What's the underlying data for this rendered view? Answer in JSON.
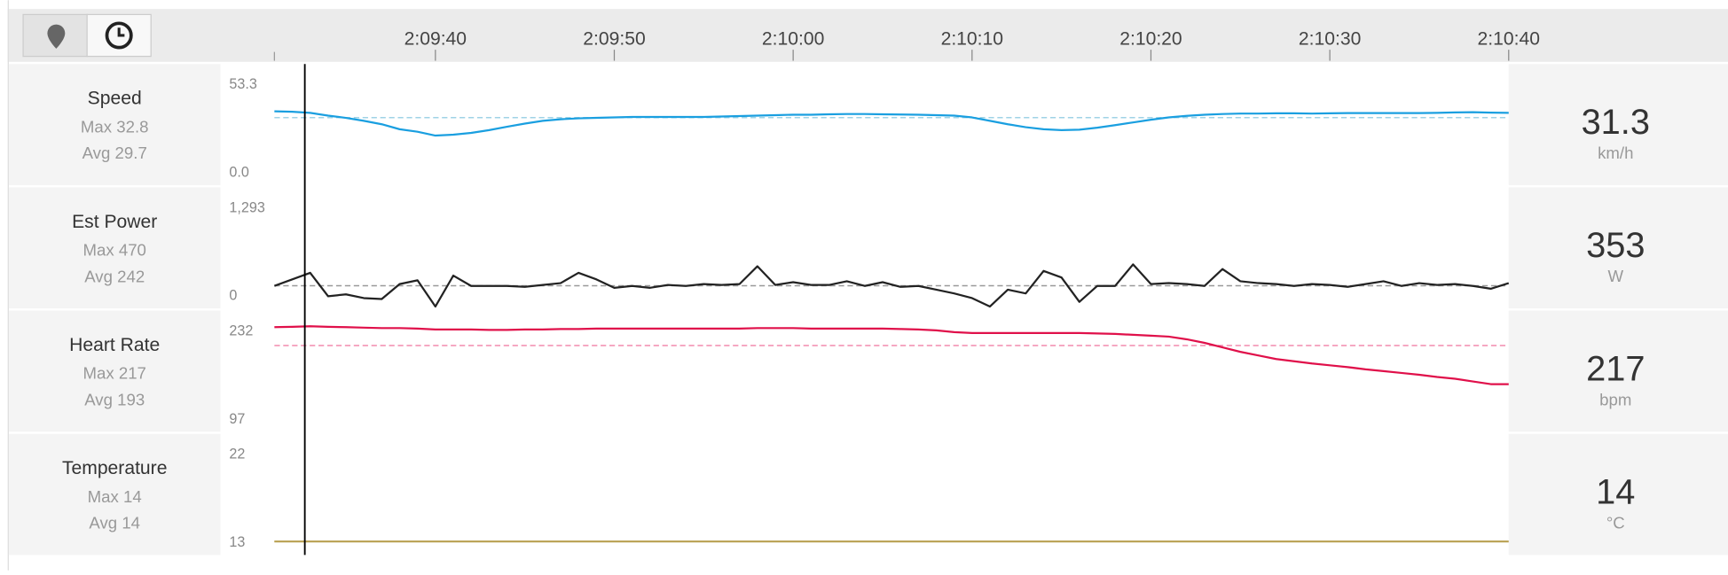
{
  "x_axis": {
    "xlim": [
      7771,
      7840
    ],
    "xticks": [
      {
        "value": 7780,
        "label": "2:09:40"
      },
      {
        "value": 7790,
        "label": "2:09:50"
      },
      {
        "value": 7800,
        "label": "2:10:00"
      },
      {
        "value": 7810,
        "label": "2:10:10"
      },
      {
        "value": 7820,
        "label": "2:10:20"
      },
      {
        "value": 7830,
        "label": "2:10:30"
      },
      {
        "value": 7840,
        "label": "2:10:40"
      }
    ],
    "cursor_x": 7772.7
  },
  "x": [
    7771,
    7772,
    7773,
    7774,
    7775,
    7776,
    7777,
    7778,
    7779,
    7780,
    7781,
    7782,
    7783,
    7784,
    7785,
    7786,
    7787,
    7788,
    7789,
    7790,
    7791,
    7792,
    7793,
    7794,
    7795,
    7796,
    7797,
    7798,
    7799,
    7800,
    7801,
    7802,
    7803,
    7804,
    7805,
    7806,
    7807,
    7808,
    7809,
    7810,
    7811,
    7812,
    7813,
    7814,
    7815,
    7816,
    7817,
    7818,
    7819,
    7820,
    7821,
    7822,
    7823,
    7824,
    7825,
    7826,
    7827,
    7828,
    7829,
    7830,
    7831,
    7832,
    7833,
    7834,
    7835,
    7836,
    7837,
    7838,
    7839,
    7840
  ],
  "stat_labels": {
    "max": "Max",
    "avg": "Avg"
  },
  "chart_data": [
    {
      "type": "line",
      "title": "Speed",
      "max": 32.8,
      "avg": 29.7,
      "current": 31.3,
      "unit": "km/h",
      "ylim": [
        0,
        53.3
      ],
      "yticks": [
        {
          "value": 0,
          "label": "0.0"
        },
        53.3
      ],
      "color": "#1a9fe0",
      "avg_color": "#9fd3e6",
      "values": [
        32.5,
        32.3,
        31.8,
        30.6,
        29.6,
        28.3,
        26.8,
        24.6,
        23.5,
        21.8,
        22.2,
        23.0,
        24.2,
        25.7,
        27.1,
        28.3,
        29.0,
        29.4,
        29.6,
        29.8,
        30.0,
        30.0,
        30.0,
        30.0,
        30.0,
        30.2,
        30.4,
        30.6,
        30.8,
        31.0,
        31.0,
        31.2,
        31.3,
        31.3,
        31.2,
        31.1,
        31.0,
        30.8,
        30.6,
        29.8,
        28.3,
        26.8,
        25.5,
        24.6,
        24.2,
        24.4,
        25.3,
        26.4,
        27.6,
        28.8,
        29.8,
        30.5,
        31.0,
        31.3,
        31.5,
        31.5,
        31.6,
        31.6,
        31.5,
        31.6,
        31.7,
        31.7,
        31.7,
        31.7,
        31.7,
        31.8,
        32.0,
        32.1,
        31.9,
        31.8
      ]
    },
    {
      "type": "line",
      "title": "Est Power",
      "max": 470,
      "avg": 242,
      "current": 353,
      "unit": "W",
      "ylim": [
        0,
        1293
      ],
      "yticks": [
        0,
        {
          "value": 1293,
          "label": "1,293"
        }
      ],
      "color": "#222222",
      "avg_color": "#999999",
      "values": [
        240,
        310,
        380,
        130,
        150,
        110,
        100,
        260,
        300,
        20,
        350,
        240,
        240,
        240,
        230,
        250,
        270,
        380,
        310,
        220,
        240,
        220,
        250,
        240,
        260,
        250,
        260,
        450,
        250,
        280,
        250,
        250,
        290,
        240,
        280,
        230,
        240,
        200,
        160,
        110,
        20,
        200,
        160,
        400,
        330,
        70,
        240,
        240,
        470,
        260,
        270,
        260,
        240,
        420,
        290,
        270,
        260,
        240,
        260,
        250,
        230,
        260,
        290,
        240,
        270,
        250,
        260,
        240,
        210,
        270
      ]
    },
    {
      "type": "line",
      "title": "Heart Rate",
      "max": 217,
      "avg": 193,
      "current": 217,
      "unit": "bpm",
      "ylim": [
        97,
        232
      ],
      "yticks": [
        97,
        232
      ],
      "color": "#e0104a",
      "avg_color": "#f28aae",
      "values": [
        213.6,
        213.9,
        214.5,
        213.9,
        213.5,
        213,
        212.5,
        212.5,
        212,
        211,
        211,
        211,
        210.5,
        210.5,
        211,
        211,
        211.5,
        211.5,
        212,
        212,
        212,
        212,
        212,
        212,
        212,
        212,
        212,
        212.5,
        212.5,
        212.5,
        212,
        212,
        212,
        212,
        212,
        211.5,
        211,
        210,
        208,
        207,
        207,
        207,
        207,
        207,
        207,
        207,
        206.5,
        206,
        205,
        204,
        203,
        200,
        196,
        191,
        186,
        182,
        178,
        175.5,
        173,
        171,
        169,
        166.5,
        164.5,
        162.5,
        160.5,
        158,
        156,
        153,
        150,
        150
      ]
    },
    {
      "type": "line",
      "title": "Temperature",
      "max": 14,
      "avg": 14,
      "current": 14,
      "unit": "°C",
      "ylim": [
        13,
        22
      ],
      "yticks": [
        13,
        22
      ],
      "color": "#b8a050",
      "avg_color": "#b8a050",
      "values": [
        14,
        14,
        14,
        14,
        14,
        14,
        14,
        14,
        14,
        14,
        14,
        14,
        14,
        14,
        14,
        14,
        14,
        14,
        14,
        14,
        14,
        14,
        14,
        14,
        14,
        14,
        14,
        14,
        14,
        14,
        14,
        14,
        14,
        14,
        14,
        14,
        14,
        14,
        14,
        14,
        14,
        14,
        14,
        14,
        14,
        14,
        14,
        14,
        14,
        14,
        14,
        14,
        14,
        14,
        14,
        14,
        14,
        14,
        14,
        14,
        14,
        14,
        14,
        14,
        14,
        14,
        14,
        14,
        14,
        14
      ]
    }
  ]
}
